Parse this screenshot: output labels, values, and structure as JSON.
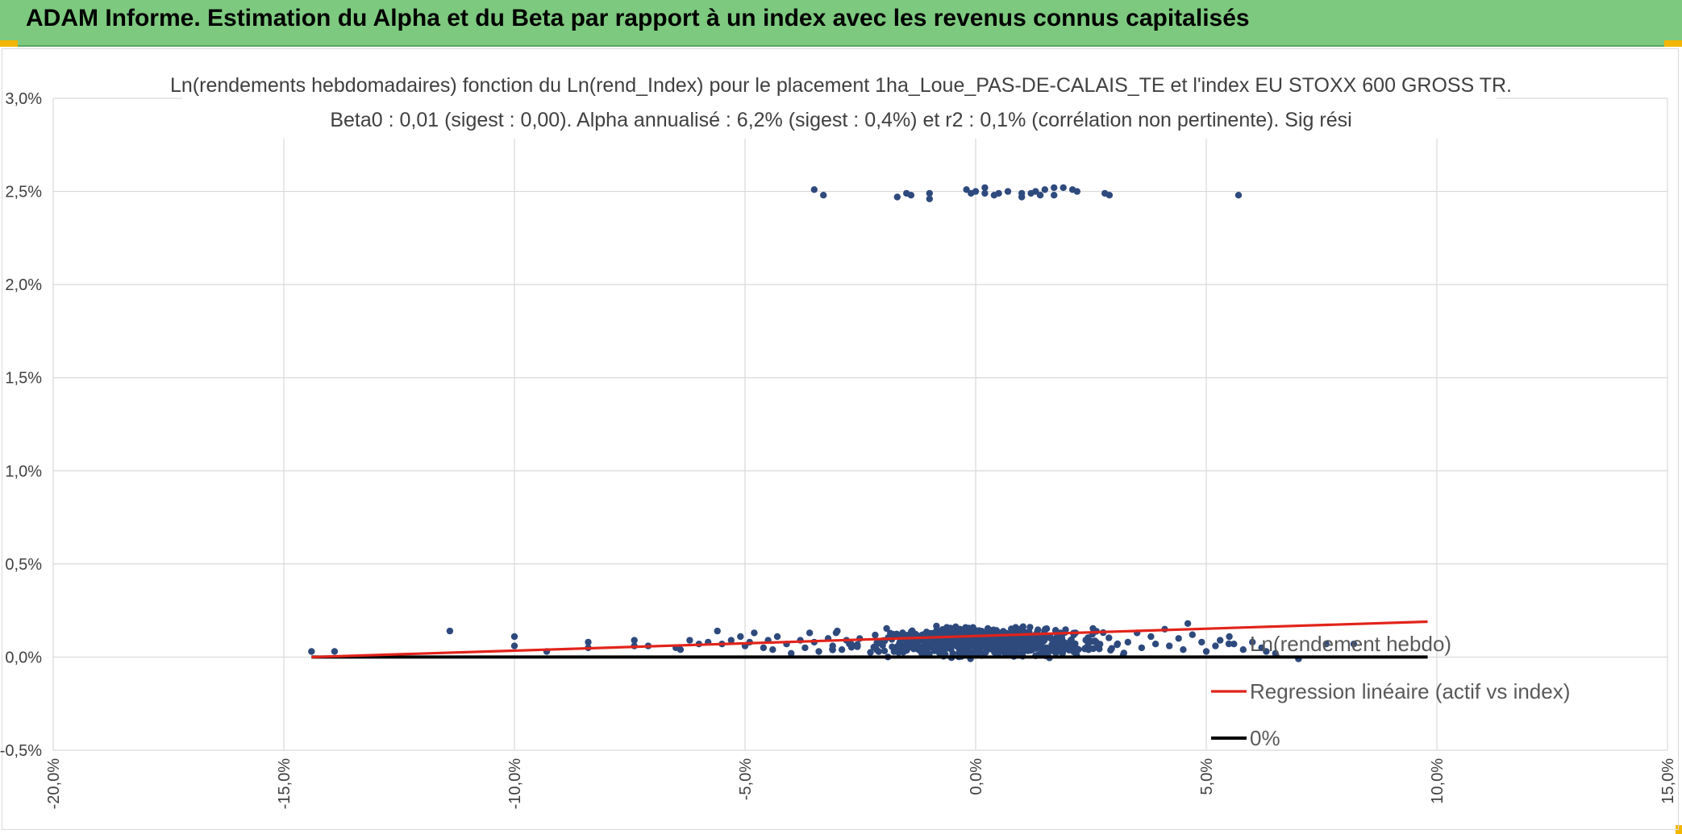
{
  "header": {
    "title": "ADAM Informe. Estimation du Alpha et du Beta par rapport à un index avec les revenus connus capitalisés"
  },
  "colors": {
    "header_bg": "#7dc97f",
    "scatter": "#2e4a7d",
    "regression": "#e2231a",
    "zero_line": "#000000",
    "grid": "#d9d9d9"
  },
  "chart_data": {
    "type": "scatter",
    "title": "Ln(rendements hebdomadaires) fonction du Ln(rend_Index) pour le placement 1ha_Loue_PAS-DE-CALAIS_TE et l'index EU STOXX 600 GROSS TR.",
    "subtitle": "Beta0 : 0,01 (sigest : 0,00). Alpha annualisé : 6,2% (sigest : 0,4%) et r2 : 0,1% (corrélation non pertinente). Sig rési",
    "xlabel": "",
    "ylabel": "",
    "xlim": [
      -0.2,
      0.15
    ],
    "ylim": [
      -0.005,
      0.03
    ],
    "x_ticks": [
      -0.2,
      -0.15,
      -0.1,
      -0.05,
      0.0,
      0.05,
      0.1,
      0.15
    ],
    "x_tick_labels": [
      "-20,0%",
      "-15,0%",
      "-10,0%",
      "-5,0%",
      "0,0%",
      "5,0%",
      "10,0%",
      "15,0%"
    ],
    "y_ticks": [
      -0.005,
      0.0,
      0.005,
      0.01,
      0.015,
      0.02,
      0.025,
      0.03
    ],
    "y_tick_labels": [
      "-0,5%",
      "0,0%",
      "0,5%",
      "1,0%",
      "1,5%",
      "2,0%",
      "2,5%",
      "3,0%"
    ],
    "grid": true,
    "legend_position": "bottom-right",
    "series": [
      {
        "name": "Ln(rendement hebdo)",
        "kind": "scatter",
        "color": "#2e4a7d",
        "points": [
          [
            -0.144,
            0.0003
          ],
          [
            -0.139,
            0.0003
          ],
          [
            -0.114,
            0.0014
          ],
          [
            -0.1,
            0.0011
          ],
          [
            -0.1,
            0.0006
          ],
          [
            -0.093,
            0.0003
          ],
          [
            -0.084,
            0.0008
          ],
          [
            -0.084,
            0.0005
          ],
          [
            -0.074,
            0.0009
          ],
          [
            -0.074,
            0.0006
          ],
          [
            -0.071,
            0.0006
          ],
          [
            -0.065,
            0.0005
          ],
          [
            -0.064,
            0.0004
          ],
          [
            -0.062,
            0.0009
          ],
          [
            -0.06,
            0.0007
          ],
          [
            -0.058,
            0.0008
          ],
          [
            -0.056,
            0.0014
          ],
          [
            -0.055,
            0.0007
          ],
          [
            -0.053,
            0.0009
          ],
          [
            -0.051,
            0.0011
          ],
          [
            -0.05,
            0.0006
          ],
          [
            -0.049,
            0.0008
          ],
          [
            -0.048,
            0.0013
          ],
          [
            -0.046,
            0.0005
          ],
          [
            -0.045,
            0.0009
          ],
          [
            -0.044,
            0.0004
          ],
          [
            -0.043,
            0.0011
          ],
          [
            -0.041,
            0.0007
          ],
          [
            -0.04,
            0.0002
          ],
          [
            -0.038,
            0.0009
          ],
          [
            -0.037,
            0.0005
          ],
          [
            -0.036,
            0.0013
          ],
          [
            -0.035,
            0.0008
          ],
          [
            -0.034,
            0.0003
          ],
          [
            -0.032,
            0.001
          ],
          [
            -0.031,
            0.0006
          ],
          [
            -0.03,
            0.0014
          ],
          [
            -0.029,
            0.0004
          ],
          [
            -0.028,
            0.0009
          ],
          [
            -0.027,
            0.0007
          ],
          [
            -0.035,
            0.0251
          ],
          [
            -0.033,
            0.0248
          ],
          [
            -0.017,
            0.0247
          ],
          [
            -0.015,
            0.0249
          ],
          [
            -0.014,
            0.0248
          ],
          [
            -0.01,
            0.0249
          ],
          [
            -0.01,
            0.0246
          ],
          [
            -0.002,
            0.0251
          ],
          [
            -0.001,
            0.0249
          ],
          [
            0.0,
            0.025
          ],
          [
            0.002,
            0.0249
          ],
          [
            0.002,
            0.0252
          ],
          [
            0.004,
            0.0248
          ],
          [
            0.005,
            0.0249
          ],
          [
            0.007,
            0.025
          ],
          [
            0.01,
            0.0249
          ],
          [
            0.01,
            0.0247
          ],
          [
            0.012,
            0.0249
          ],
          [
            0.013,
            0.025
          ],
          [
            0.014,
            0.0248
          ],
          [
            0.015,
            0.0251
          ],
          [
            0.017,
            0.0248
          ],
          [
            0.017,
            0.0252
          ],
          [
            0.019,
            0.0252
          ],
          [
            0.021,
            0.0251
          ],
          [
            0.022,
            0.025
          ],
          [
            0.028,
            0.0249
          ],
          [
            0.029,
            0.0248
          ],
          [
            0.057,
            0.0248
          ],
          [
            0.033,
            0.0008
          ],
          [
            0.035,
            0.0013
          ],
          [
            0.036,
            0.0005
          ],
          [
            0.038,
            0.0011
          ],
          [
            0.039,
            0.0007
          ],
          [
            0.041,
            0.0015
          ],
          [
            0.042,
            0.0006
          ],
          [
            0.044,
            0.001
          ],
          [
            0.045,
            0.0004
          ],
          [
            0.046,
            0.0018
          ],
          [
            0.047,
            0.0012
          ],
          [
            0.049,
            0.0008
          ],
          [
            0.05,
            0.0003
          ],
          [
            0.052,
            0.0006
          ],
          [
            0.053,
            0.0009
          ],
          [
            0.055,
            0.0011
          ],
          [
            0.056,
            0.0007
          ],
          [
            0.058,
            0.0004
          ],
          [
            0.06,
            0.0008
          ],
          [
            0.062,
            0.0005
          ],
          [
            0.063,
            0.0003
          ],
          [
            0.065,
            0.0002
          ],
          [
            0.07,
            -0.0001
          ],
          [
            0.076,
            0.0007
          ],
          [
            0.082,
            0.0007
          ]
        ]
      },
      {
        "name": "Regression linéaire (actif vs index)",
        "kind": "line",
        "color": "#e2231a",
        "points": [
          [
            -0.144,
            0.0
          ],
          [
            0.098,
            0.0019
          ]
        ]
      },
      {
        "name": "0%",
        "kind": "line",
        "color": "#000000",
        "points": [
          [
            -0.144,
            0.0
          ],
          [
            0.098,
            0.0
          ]
        ]
      }
    ]
  }
}
